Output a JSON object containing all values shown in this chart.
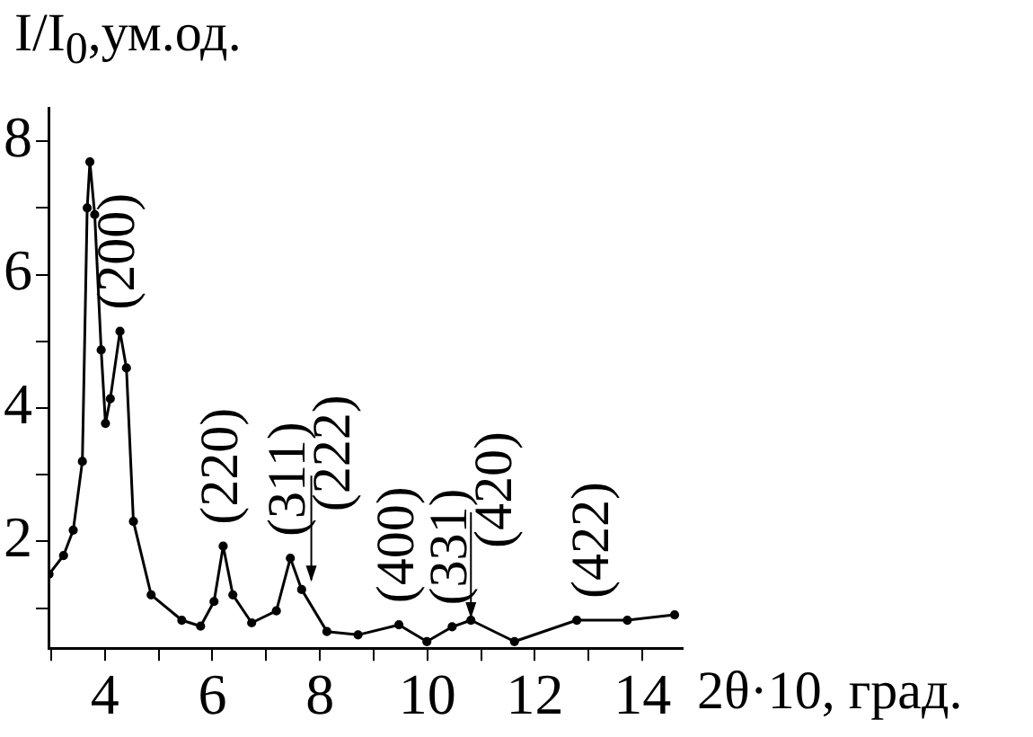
{
  "chart_data": {
    "type": "line",
    "ylabel": "I/I$_{0}$,ум.од.",
    "xlabel": "2θ·10, град.",
    "x": [
      2.96,
      3.23,
      3.41,
      3.58,
      3.67,
      3.72,
      3.81,
      3.93,
      4.01,
      4.1,
      4.28,
      4.4,
      4.53,
      4.86,
      5.43,
      5.78,
      6.03,
      6.2,
      6.38,
      6.73,
      7.19,
      7.45,
      7.66,
      8.13,
      8.71,
      9.47,
      9.99,
      10.46,
      10.81,
      11.62,
      12.78,
      13.72,
      14.6
    ],
    "series": [
      {
        "color": "#000000",
        "values": [
          1.51,
          1.79,
          2.17,
          3.2,
          7.0,
          7.69,
          6.9,
          4.87,
          3.77,
          4.14,
          5.15,
          4.6,
          2.3,
          1.2,
          0.82,
          0.73,
          1.1,
          1.93,
          1.2,
          0.78,
          0.96,
          1.75,
          1.28,
          0.65,
          0.6,
          0.75,
          0.5,
          0.72,
          0.82,
          0.5,
          0.82,
          0.82,
          0.9
        ]
      }
    ],
    "annotations": [
      {
        "text": "(200)",
        "x": 4.28,
        "y": 5.15
      },
      {
        "text": "(220)",
        "x": 6.2,
        "y": 1.93
      },
      {
        "text": "(311)",
        "x": 7.45,
        "y": 1.75
      },
      {
        "text": "(222)",
        "x": 7.84,
        "y": 1.37
      },
      {
        "text": "(400)",
        "x": 9.47,
        "y": 0.75
      },
      {
        "text": "(331)",
        "x": 10.46,
        "y": 0.72
      },
      {
        "text": "(420)",
        "x": 10.81,
        "y": 0.82
      },
      {
        "text": "(422)",
        "x": 13.1,
        "y": 0.82
      }
    ],
    "xlim": [
      2.95,
      14.75
    ],
    "ylim": [
      0.4,
      8.5
    ],
    "xticks": [
      {
        "value": 3,
        "label": null
      },
      4,
      {
        "value": 5,
        "label": null
      },
      6,
      {
        "value": 7,
        "label": null
      },
      8,
      {
        "value": 9,
        "label": null
      },
      10,
      {
        "value": 11,
        "label": null
      },
      12,
      {
        "value": 13,
        "label": null
      },
      14
    ],
    "yticks": [
      {
        "value": 1,
        "label": null
      },
      2,
      {
        "value": 3,
        "label": null
      },
      4,
      {
        "value": 5,
        "label": null
      },
      6,
      {
        "value": 7,
        "label": null
      },
      8
    ],
    "marker": "circle",
    "line_style": "solid",
    "grid": false,
    "legend": false
  }
}
